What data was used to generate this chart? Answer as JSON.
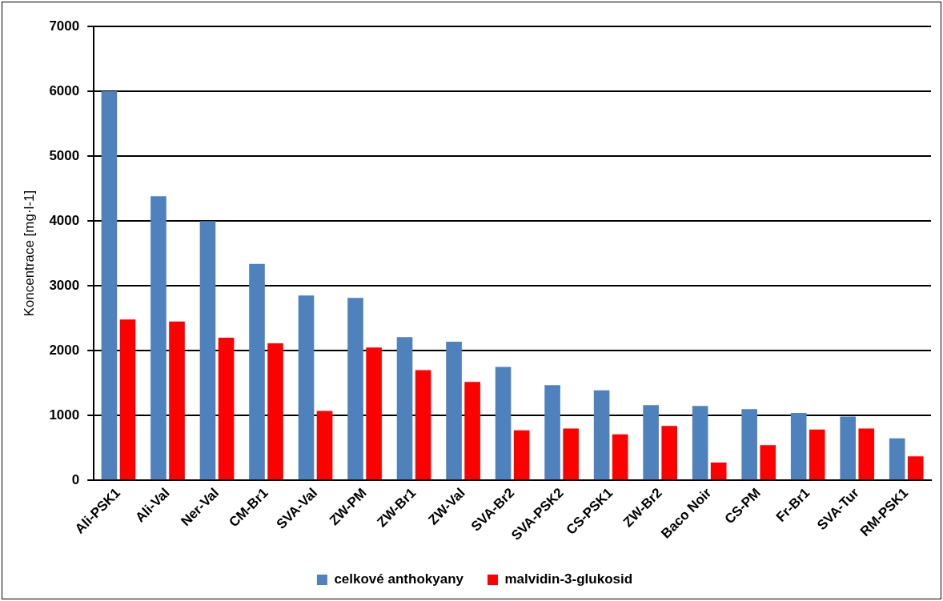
{
  "chart_data": {
    "type": "bar",
    "ylabel": "Koncentrace [mg·l-1]",
    "categories": [
      "Ali-PSK1",
      "Ali-Val",
      "Ner-Val",
      "CM-Br1",
      "SVA-Val",
      "ZW-PM",
      "ZW-Br1",
      "ZW-Val",
      "SVA-Br2",
      "SVA-PSK2",
      "CS-PSK1",
      "ZW-Br2",
      "Baco Noir",
      "CS-PM",
      "Fr-Br1",
      "SVA-Tur",
      "RM-PSK1"
    ],
    "series": [
      {
        "name": "celkové anthokyany",
        "color": "#4f81bd",
        "values": [
          6000,
          4380,
          4000,
          3340,
          2850,
          2815,
          2210,
          2140,
          1750,
          1470,
          1390,
          1160,
          1150,
          1100,
          1040,
          985,
          650
        ]
      },
      {
        "name": "malvidin-3-glukosid",
        "color": "#ff0000",
        "values": [
          2480,
          2450,
          2200,
          2115,
          1070,
          2050,
          1700,
          1520,
          773,
          800,
          710,
          840,
          275,
          545,
          785,
          800,
          370
        ]
      }
    ],
    "ylim": [
      0,
      7000
    ],
    "yticks": [
      0,
      1000,
      2000,
      3000,
      4000,
      5000,
      6000,
      7000
    ],
    "grid": "y",
    "legend": "bottom"
  }
}
